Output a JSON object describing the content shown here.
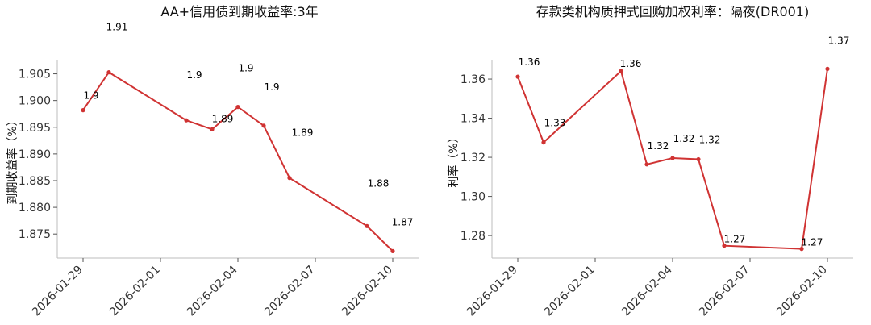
{
  "chart_data": [
    {
      "type": "line",
      "title": "AA+信用债到期收益率:3年",
      "ylabel": "到期收益率（%）",
      "xlabel": "",
      "ylim": [
        1.8705,
        1.9075
      ],
      "xlim": [
        "2026-01-28",
        "2026-02-11"
      ],
      "yticks": [
        1.875,
        1.88,
        1.885,
        1.89,
        1.895,
        1.9,
        1.905
      ],
      "ytick_labels": [
        "1.875",
        "1.880",
        "1.885",
        "1.890",
        "1.895",
        "1.900",
        "1.905"
      ],
      "xticks": [
        "2026-01-29",
        "2026-02-01",
        "2026-02-04",
        "2026-02-07",
        "2026-02-10"
      ],
      "series": [
        {
          "color": "#d03333",
          "x": [
            "2026-01-29",
            "2026-01-30",
            "2026-02-02",
            "2026-02-03",
            "2026-02-04",
            "2026-02-05",
            "2026-02-06",
            "2026-02-09",
            "2026-02-10"
          ],
          "y": [
            1.8982,
            1.9053,
            1.8963,
            1.8946,
            1.8988,
            1.8953,
            1.8855,
            1.8765,
            1.8718
          ],
          "labels": [
            "1.9",
            "1.91",
            "1.9",
            "1.89",
            "1.9",
            "1.9",
            "1.89",
            "1.88",
            "1.87"
          ]
        }
      ],
      "grid": false
    },
    {
      "type": "line",
      "title": "存款类机构质押式回购加权利率：隔夜(DR001)",
      "ylabel": "利率（%）",
      "xlabel": "",
      "ylim": [
        1.2685,
        1.3695
      ],
      "xlim": [
        "2026-01-28",
        "2026-02-11"
      ],
      "yticks": [
        1.28,
        1.3,
        1.32,
        1.34,
        1.36
      ],
      "ytick_labels": [
        "1.28",
        "1.30",
        "1.32",
        "1.34",
        "1.36"
      ],
      "xticks": [
        "2026-01-29",
        "2026-02-01",
        "2026-02-04",
        "2026-02-07",
        "2026-02-10"
      ],
      "series": [
        {
          "color": "#d03333",
          "x": [
            "2026-01-29",
            "2026-01-30",
            "2026-02-02",
            "2026-02-03",
            "2026-02-04",
            "2026-02-05",
            "2026-02-06",
            "2026-02-09",
            "2026-02-10"
          ],
          "y": [
            1.3612,
            1.3276,
            1.3641,
            1.3164,
            1.3196,
            1.319,
            1.2748,
            1.2732,
            1.3652
          ],
          "labels": [
            "1.36",
            "1.33",
            "1.36",
            "1.32",
            "1.32",
            "1.32",
            "1.27",
            "1.27",
            "1.37"
          ]
        }
      ],
      "grid": false
    }
  ]
}
